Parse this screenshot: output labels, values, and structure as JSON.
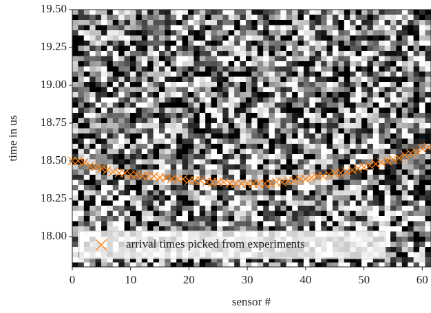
{
  "chart_data": {
    "type": "scatter",
    "xlabel": "sensor #",
    "ylabel": "time in us",
    "xlim": [
      0,
      61.5
    ],
    "ylim": [
      17.8,
      19.5
    ],
    "xticks": [
      0,
      10,
      20,
      30,
      40,
      50,
      60
    ],
    "yticks": [
      {
        "value": 18,
        "label": "18.00"
      },
      18.25,
      {
        "value": 18.5,
        "label": "18.50"
      },
      18.75,
      {
        "value": 19,
        "label": "19.00"
      },
      19.25,
      {
        "value": 19.5,
        "label": "19.50"
      }
    ],
    "legend": "lower left",
    "series": [
      {
        "name": "arrival times picked from experiments",
        "color": "#ff7f0e",
        "marker": "x",
        "x": [
          0,
          1,
          2,
          3,
          4,
          5,
          6,
          7,
          8,
          9,
          10,
          11,
          12,
          13,
          14,
          15,
          16,
          17,
          18,
          19,
          20,
          21,
          22,
          23,
          24,
          25,
          26,
          27,
          28,
          29,
          30,
          31,
          32,
          33,
          34,
          35,
          36,
          37,
          38,
          39,
          40,
          41,
          42,
          43,
          44,
          45,
          46,
          47,
          48,
          49,
          50,
          51,
          52,
          53,
          54,
          55,
          56,
          57,
          58,
          59,
          60,
          61
        ],
        "y": [
          18.5,
          18.5,
          18.49,
          18.47,
          18.46,
          18.45,
          18.44,
          18.43,
          18.42,
          18.42,
          18.41,
          18.41,
          18.4,
          18.4,
          18.4,
          18.39,
          18.39,
          18.38,
          18.38,
          18.38,
          18.37,
          18.37,
          18.37,
          18.36,
          18.36,
          18.36,
          18.36,
          18.35,
          18.35,
          18.35,
          18.35,
          18.35,
          18.35,
          18.35,
          18.35,
          18.36,
          18.36,
          18.37,
          18.37,
          18.38,
          18.38,
          18.39,
          18.4,
          18.4,
          18.41,
          18.42,
          18.42,
          18.43,
          18.44,
          18.45,
          18.46,
          18.47,
          18.48,
          18.49,
          18.5,
          18.51,
          18.52,
          18.54,
          18.55,
          18.56,
          18.58,
          18.59
        ]
      }
    ]
  }
}
